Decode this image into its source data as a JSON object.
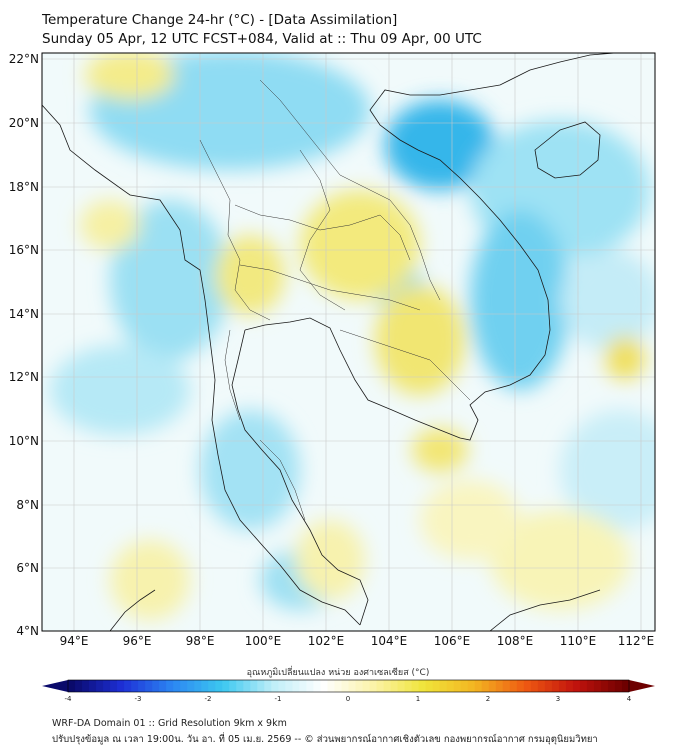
{
  "header": {
    "title": "Temperature Change 24-hr (°C) - [Data Assimilation]",
    "subtitle": "Sunday 05 Apr, 12 UTC FCST+084, Valid at :: Thu 09 Apr, 00 UTC"
  },
  "map": {
    "lat_labels": [
      "22°N",
      "20°N",
      "18°N",
      "16°N",
      "14°N",
      "12°N",
      "10°N",
      "8°N",
      "6°N",
      "4°N"
    ],
    "lon_labels": [
      "94°E",
      "96°E",
      "98°E",
      "100°E",
      "102°E",
      "104°E",
      "106°E",
      "108°E",
      "110°E",
      "112°E"
    ]
  },
  "colorbar": {
    "label": "อุณหภูมิเปลี่ยนแปลง หน่วย องศาเซลเซียส (°C)",
    "ticks": [
      "-4",
      "-3",
      "-2",
      "-1",
      "0",
      "1",
      "2",
      "3",
      "4"
    ],
    "range": [
      -4,
      4
    ],
    "colors": [
      "#0a0a6b",
      "#1d2fd6",
      "#2c86f2",
      "#3cc8f0",
      "#bfeef8",
      "#ffffff",
      "#fbf3a8",
      "#f0e43a",
      "#f3b521",
      "#ef5a12",
      "#c2130d",
      "#6e0000"
    ]
  },
  "footer": {
    "line1": "WRF-DA Domain 01 :: Grid Resolution 9km x 9km",
    "line2": "ปรับปรุงข้อมูล ณ เวลา 19:00น. วัน อา. ที่ 05 เม.ย. 2569 -- © ส่วนพยากรณ์อากาศเชิงตัวเลข กองพยากรณ์อากาศ กรมอุตุนิยมวิทยา"
  }
}
